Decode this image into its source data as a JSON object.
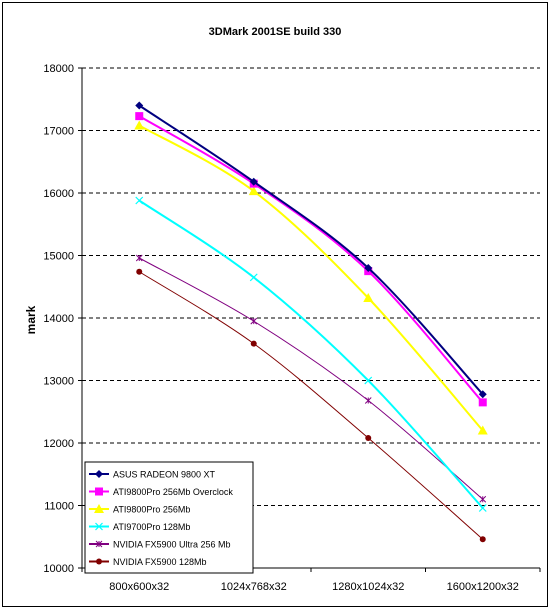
{
  "chart_data": {
    "type": "line",
    "title": "3DMark 2001SE build 330",
    "xlabel": "",
    "ylabel": "mark",
    "ylim": [
      10000,
      18000
    ],
    "ytick_step": 1000,
    "yticks": [
      "10000",
      "11000",
      "12000",
      "13000",
      "14000",
      "15000",
      "16000",
      "17000",
      "18000"
    ],
    "grid": "horizontal dashed",
    "legend_position": "bottom-left",
    "categories": [
      "800x600x32",
      "1024x768x32",
      "1280x1024x32",
      "1600x1200x32"
    ],
    "series": [
      {
        "name": "ASUS RADEON 9800 XT",
        "color": "#000080",
        "marker": "diamond",
        "values": [
          17400,
          16180,
          14800,
          12780
        ]
      },
      {
        "name": "ATI9800Pro 256Mb Overclock",
        "color": "#FF00FF",
        "marker": "square",
        "values": [
          17230,
          16150,
          14750,
          12650
        ]
      },
      {
        "name": "ATI9800Pro 256Mb",
        "color": "#FFFF00",
        "marker": "triangle",
        "values": [
          17080,
          16030,
          14320,
          12200
        ]
      },
      {
        "name": "ATI9700Pro 128Mb",
        "color": "#00FFFF",
        "marker": "x",
        "values": [
          15880,
          14650,
          13000,
          10960
        ]
      },
      {
        "name": "NVIDIA FX5900 Ultra 256 Mb",
        "color": "#800080",
        "marker": "star",
        "values": [
          14960,
          13950,
          12680,
          11100
        ]
      },
      {
        "name": "NVIDIA FX5900 128Mb",
        "color": "#800000",
        "marker": "circle",
        "values": [
          14740,
          13590,
          12080,
          10460
        ]
      }
    ]
  }
}
